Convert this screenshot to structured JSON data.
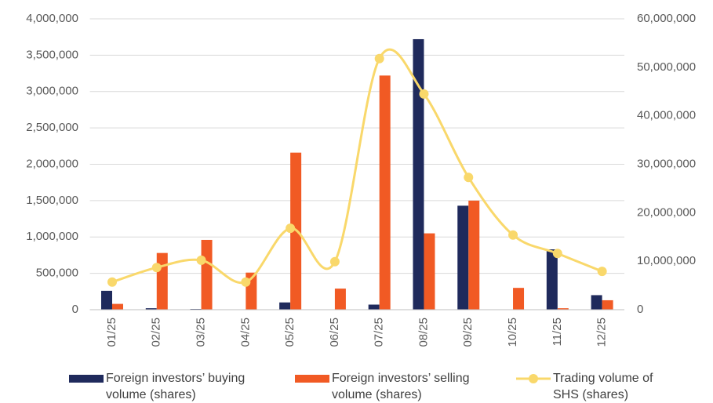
{
  "chart_data": {
    "type": "bar_line",
    "categories": [
      "01/25",
      "02/25",
      "03/25",
      "04/25",
      "05/25",
      "06/25",
      "07/25",
      "08/25",
      "09/25",
      "10/25",
      "11/25",
      "12/25"
    ],
    "series": [
      {
        "name": "Foreign investors’ buying volume (shares)",
        "type": "bar",
        "color": "#1f2a5c",
        "values": [
          260000,
          20000,
          10000,
          0,
          100000,
          0,
          70000,
          3720000,
          1430000,
          0,
          830000,
          200000
        ]
      },
      {
        "name": "Foreign investors’ selling volume (shares)",
        "type": "bar",
        "color": "#f15a24",
        "values": [
          80000,
          780000,
          960000,
          510000,
          2160000,
          290000,
          3220000,
          1050000,
          1500000,
          300000,
          20000,
          130000
        ]
      },
      {
        "name": "Trading volume of SHS (shares)",
        "type": "line",
        "axis": "y2",
        "color": "#f9d86b",
        "values": [
          5700000,
          8700000,
          10200000,
          5700000,
          16800000,
          9900000,
          51800000,
          44500000,
          27300000,
          15400000,
          11600000,
          7900000
        ]
      }
    ],
    "ylim": [
      0,
      4000000
    ],
    "yticks": [
      0,
      {
        "value": 500000,
        "label": "500,000"
      },
      {
        "value": 1000000,
        "label": "1,000,000"
      },
      {
        "value": 1500000,
        "label": "1,500,000"
      },
      {
        "value": 2000000,
        "label": "2,000,000"
      },
      {
        "value": 2500000,
        "label": "2,500,000"
      },
      {
        "value": 3000000,
        "label": "3,000,000"
      },
      {
        "value": 3500000,
        "label": "3,500,000"
      },
      {
        "value": 4000000,
        "label": "4,000,000"
      }
    ],
    "y2lim": [
      0,
      60000000
    ],
    "y2ticks": [
      0,
      {
        "value": 10000000,
        "label": "10,000,000"
      },
      {
        "value": 20000000,
        "label": "20,000,000"
      },
      {
        "value": 30000000,
        "label": "30,000,000"
      },
      {
        "value": 40000000,
        "label": "40,000,000"
      },
      {
        "value": 50000000,
        "label": "50,000,000"
      },
      {
        "value": 60000000,
        "label": "60,000,000"
      }
    ],
    "grid": true,
    "legend": "bottom"
  }
}
